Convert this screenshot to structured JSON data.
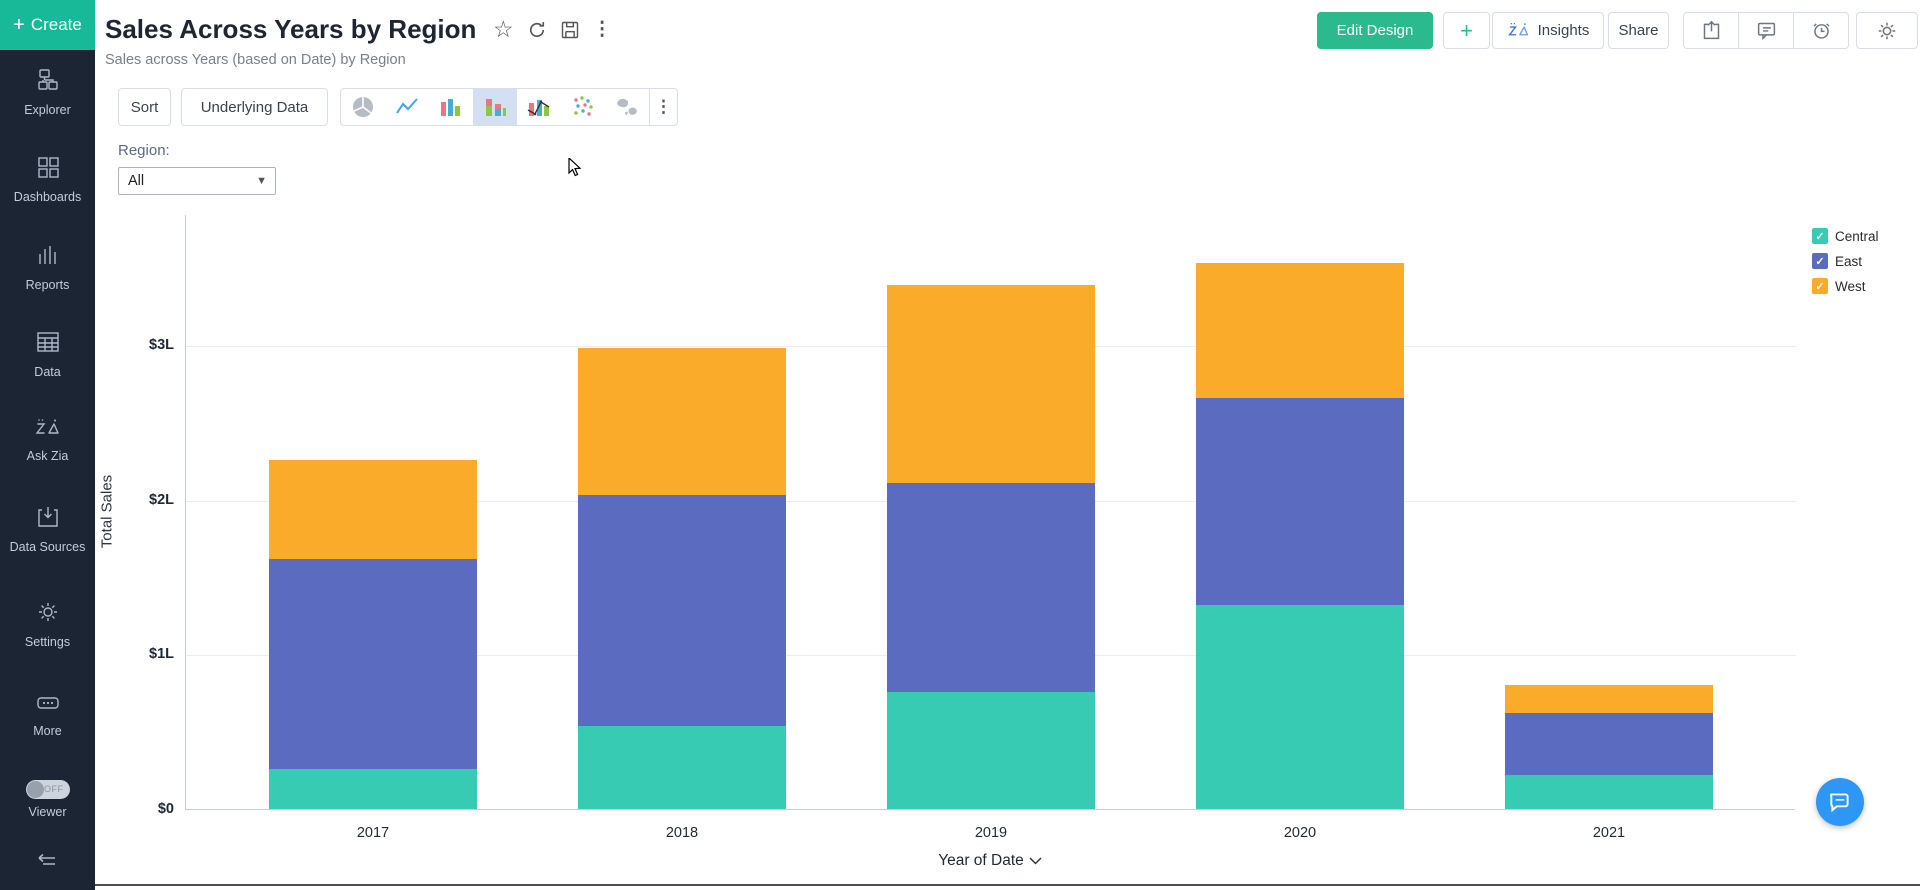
{
  "sidebar": {
    "create_label": "Create",
    "items": [
      {
        "label": "Explorer"
      },
      {
        "label": "Dashboards"
      },
      {
        "label": "Reports"
      },
      {
        "label": "Data"
      },
      {
        "label": "Ask Zia"
      },
      {
        "label": "Data Sources"
      },
      {
        "label": "Settings"
      },
      {
        "label": "More"
      }
    ],
    "viewer": {
      "label": "Viewer",
      "toggle_state": "OFF"
    }
  },
  "header": {
    "title": "Sales Across Years by Region",
    "subtitle": "Sales across Years (based on Date) by Region"
  },
  "actions": {
    "edit_design": "Edit Design",
    "add": "+",
    "insights": "Insights",
    "share": "Share"
  },
  "toolbar": {
    "sort_label": "Sort",
    "underlying_data_label": "Underlying Data",
    "chart_types": [
      "pie-chart",
      "line-chart",
      "bar-chart",
      "stacked-bar-chart",
      "combo-chart",
      "scatter-chart",
      "map-chart"
    ],
    "selected_chart_type": "stacked-bar-chart"
  },
  "filter": {
    "label": "Region:",
    "value": "All"
  },
  "chart_data": {
    "type": "bar",
    "stacked": true,
    "categories": [
      "2017",
      "2018",
      "2019",
      "2020",
      "2021"
    ],
    "series": [
      {
        "name": "Central",
        "color": "#38cbb4",
        "values": [
          0.26,
          0.54,
          0.76,
          1.32,
          0.22
        ]
      },
      {
        "name": "East",
        "color": "#5b6bc0",
        "values": [
          1.36,
          1.49,
          1.35,
          1.34,
          0.4
        ]
      },
      {
        "name": "West",
        "color": "#fbab2a",
        "values": [
          0.64,
          0.95,
          1.28,
          0.87,
          0.18
        ]
      }
    ],
    "ylabel": "Total Sales",
    "xlabel": "Year of Date",
    "yticks": [
      {
        "value": 0,
        "label": "$0"
      },
      {
        "value": 1,
        "label": "$1L"
      },
      {
        "value": 2,
        "label": "$2L"
      },
      {
        "value": 3,
        "label": "$3L"
      }
    ],
    "ylim": [
      0,
      3.85
    ],
    "units": "lakhs",
    "grid": true,
    "legend_position": "right"
  },
  "colors": {
    "accent_teal": "#17b998",
    "edit_design_green": "#2bb98e",
    "sidebar_bg": "#1b2534",
    "selected_icon_bg": "#d2e0f2",
    "chat_fab_blue": "#2e96f5"
  }
}
